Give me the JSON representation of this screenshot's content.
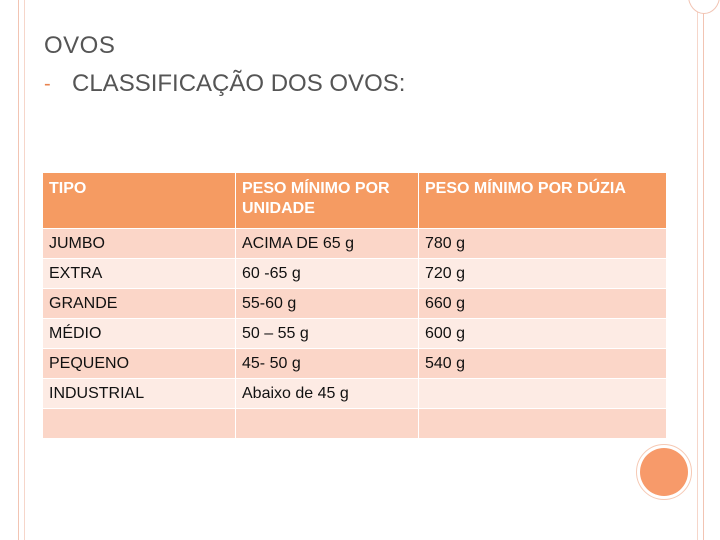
{
  "slide": {
    "title": "OVOS",
    "bullet": "-",
    "subtitle": "CLASSIFICAÇÃO DOS OVOS:"
  },
  "table": {
    "headers": [
      "TIPO",
      "PESO MÍNIMO POR UNIDADE",
      "PESO MÍNIMO POR DÚZIA"
    ],
    "rows": [
      [
        "JUMBO",
        "ACIMA DE 65 g",
        " 780 g"
      ],
      [
        "EXTRA",
        "60 -65 g",
        "720 g"
      ],
      [
        "GRANDE",
        "55-60 g",
        "660 g"
      ],
      [
        "MÉDIO",
        "50 – 55 g",
        "600 g"
      ],
      [
        "PEQUENO",
        "45- 50 g",
        "540 g"
      ],
      [
        "INDUSTRIAL",
        "Abaixo de 45 g",
        ""
      ],
      [
        "",
        "",
        ""
      ]
    ]
  },
  "colors": {
    "header_bg": "#f59b62",
    "row_dark": "#fbd6c8",
    "row_light": "#fdebe4",
    "accent": "#f79a6a"
  }
}
